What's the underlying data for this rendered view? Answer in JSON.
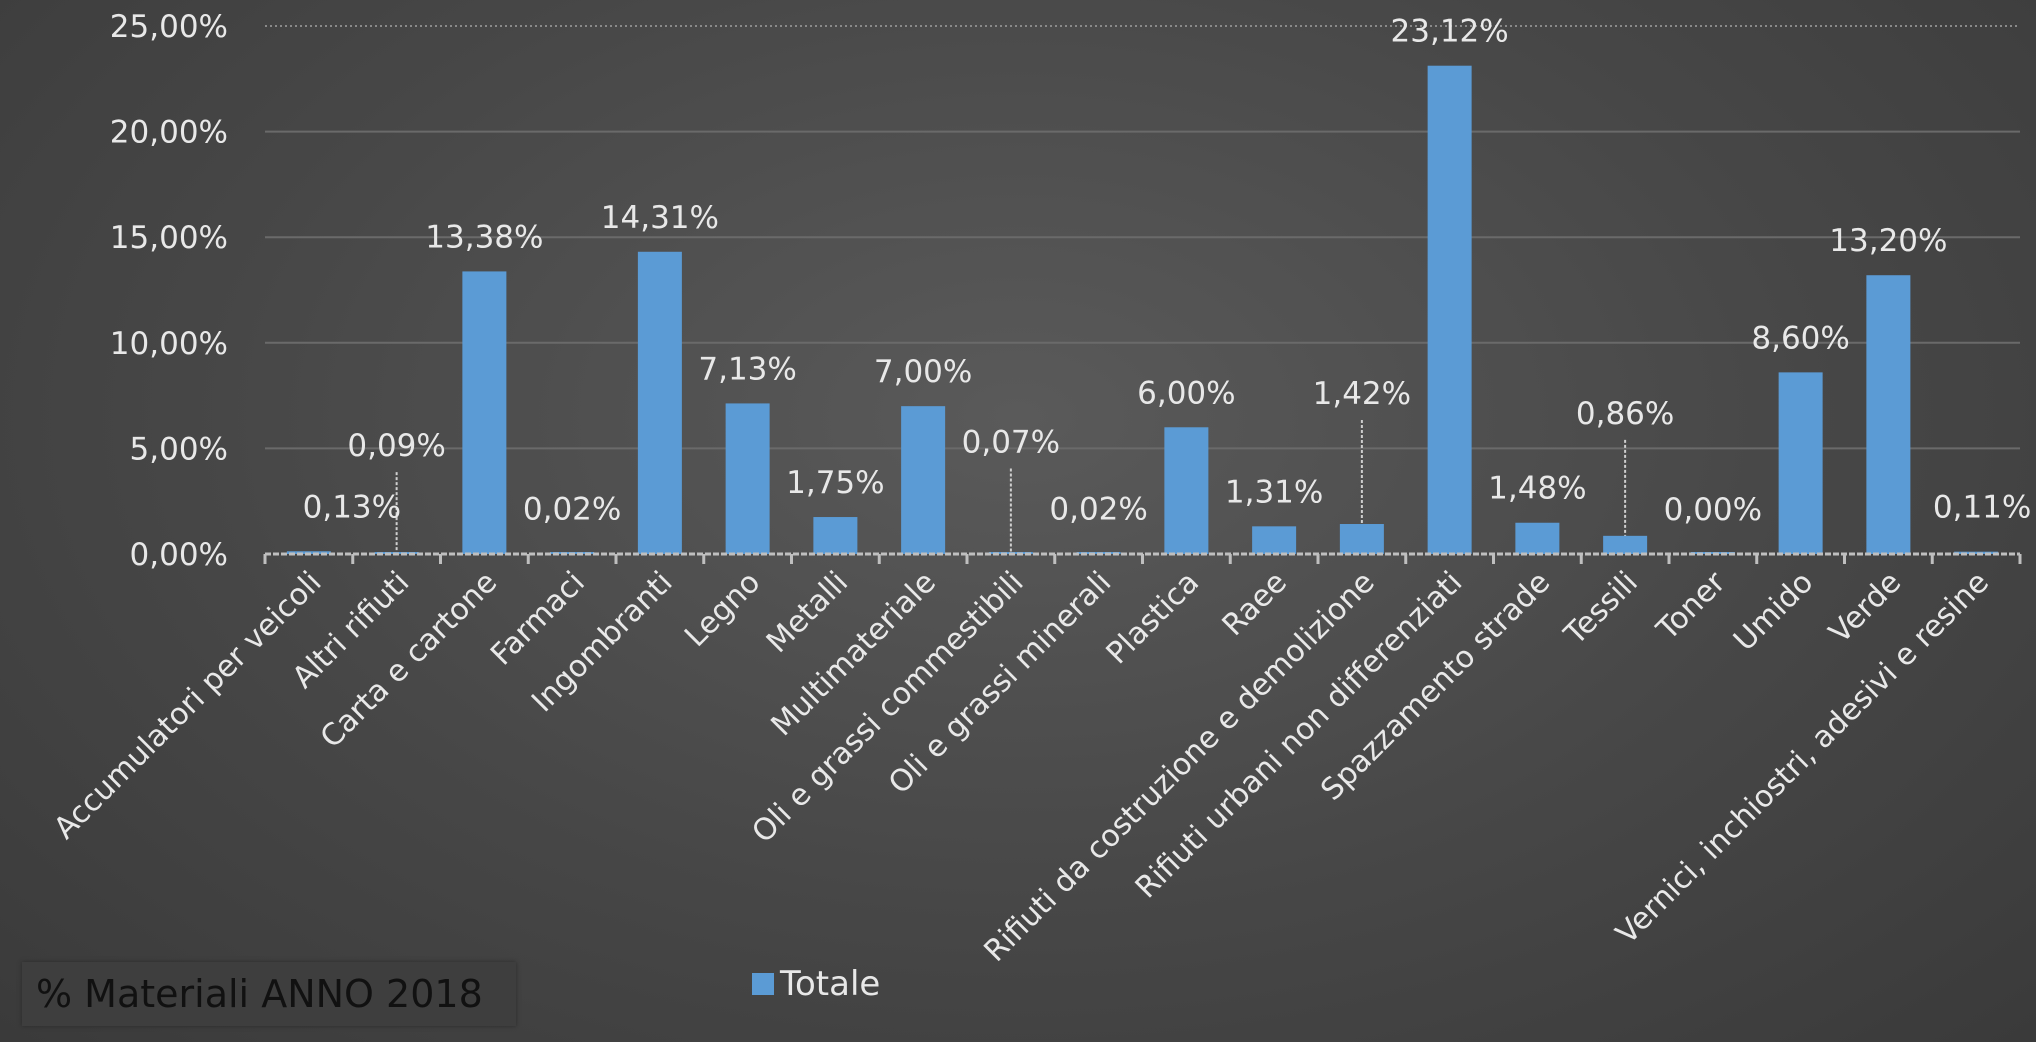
{
  "title": "% Materiali ANNO 2018",
  "chart_data": {
    "type": "bar",
    "categories": [
      "Accumulatori per veicoli",
      "Altri rifiuti",
      "Carta e cartone",
      "Farmaci",
      "Ingombranti",
      "Legno",
      "Metalli",
      "Multimateriale",
      "Oli e grassi commestibili",
      "Oli e grassi minerali",
      "Plastica",
      "Raee",
      "Rifiuti da costruzione e demolizione",
      "Rifiuti urbani non differenziati",
      "Spazzamento strade",
      "Tessili",
      "Toner",
      "Umido",
      "Verde",
      "Vernici, inchiostri, adesivi e resine"
    ],
    "series": [
      {
        "name": "Totale",
        "color": "#5b9bd5",
        "values": [
          0.13,
          0.09,
          13.38,
          0.02,
          14.31,
          7.13,
          1.75,
          7.0,
          0.07,
          0.02,
          6.0,
          1.31,
          1.42,
          23.12,
          1.48,
          0.86,
          0.0,
          8.6,
          13.2,
          0.11
        ],
        "labels": [
          "0,13%",
          "0,09%",
          "13,38%",
          "0,02%",
          "14,31%",
          "7,13%",
          "1,75%",
          "7,00%",
          "0,07%",
          "0,02%",
          "6,00%",
          "1,31%",
          "1,42%",
          "23,12%",
          "1,48%",
          "0,86%",
          "0,00%",
          "8,60%",
          "13,20%",
          "0,11%"
        ]
      }
    ],
    "ylim": [
      0,
      25
    ],
    "yticks": [
      "0,00%",
      "5,00%",
      "10,00%",
      "15,00%",
      "20,00%",
      "25,00%"
    ],
    "grid": true,
    "legend_position": "bottom"
  }
}
